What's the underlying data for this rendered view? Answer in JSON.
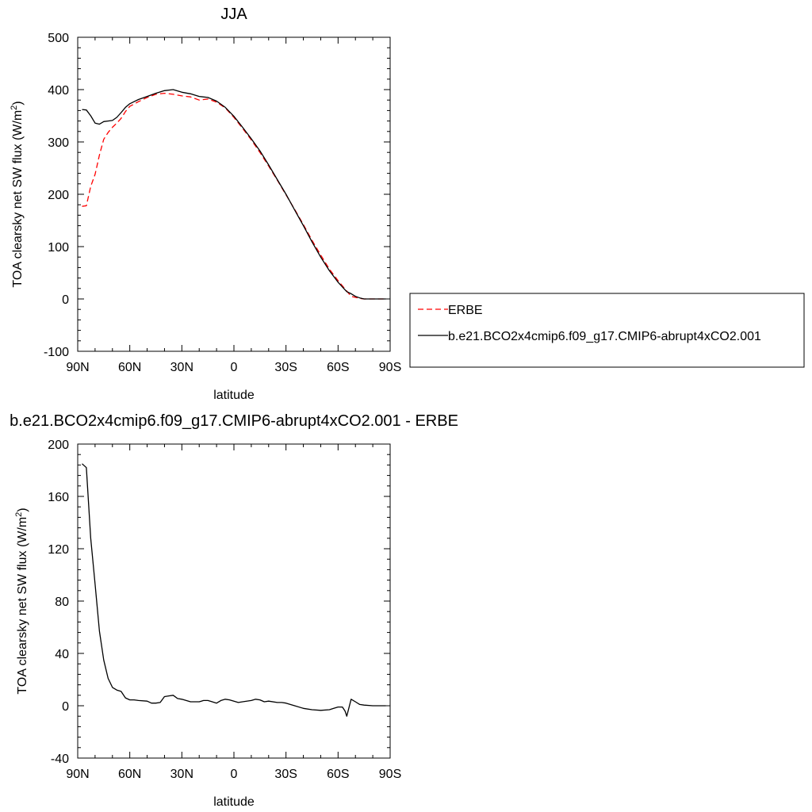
{
  "chart_data": [
    {
      "type": "line",
      "title": "JJA",
      "xlabel": "latitude",
      "ylabel": "TOA clearsky net SW flux (W/m",
      "ylabel_sup": "2",
      "ylabel_close": ")",
      "xlim": [
        90,
        -90
      ],
      "ylim": [
        -100,
        500
      ],
      "xticks": [
        90,
        60,
        30,
        0,
        -30,
        -60,
        -90
      ],
      "xtick_labels": [
        "90N",
        "60N",
        "30N",
        "0",
        "30S",
        "60S",
        "90S"
      ],
      "yticks": [
        -100,
        0,
        100,
        200,
        300,
        400,
        500
      ],
      "ytick_labels": [
        "-100",
        "0",
        "100",
        "200",
        "300",
        "400",
        "500"
      ],
      "grid": false,
      "legend_position": "right",
      "series": [
        {
          "name": "ERBE",
          "color": "#ff0000",
          "dash": "dashed",
          "x": [
            87.5,
            85,
            82.5,
            80,
            77.5,
            75,
            72.5,
            70,
            67.5,
            65,
            62.5,
            60,
            55,
            50,
            45,
            40,
            35,
            30,
            25,
            20,
            15,
            10,
            5,
            0,
            -5,
            -10,
            -15,
            -20,
            -25,
            -30,
            -35,
            -40,
            -45,
            -50,
            -55,
            -60,
            -65,
            -67.5,
            -70,
            -72.5,
            -75,
            -80,
            -85,
            -87.5
          ],
          "y": [
            177,
            178,
            215,
            238,
            275,
            305,
            318,
            328,
            336,
            345,
            358,
            368,
            377,
            385,
            391,
            393,
            391,
            388,
            386,
            380,
            382,
            376,
            365,
            347,
            326,
            304,
            280,
            254,
            227,
            199,
            171,
            142,
            112,
            84,
            57,
            35,
            15,
            5,
            3,
            1,
            0,
            0,
            0,
            0
          ]
        },
        {
          "name": "b.e21.BCO2x4cmip6.f09_g17.CMIP6-abrupt4xCO2.001",
          "color": "#000000",
          "dash": "solid",
          "x": [
            87.5,
            85,
            82.5,
            80,
            77.5,
            75,
            72.5,
            70,
            67.5,
            65,
            62.5,
            60,
            55,
            50,
            45,
            40,
            35,
            30,
            25,
            20,
            15,
            10,
            5,
            0,
            -5,
            -10,
            -15,
            -20,
            -25,
            -30,
            -35,
            -40,
            -45,
            -50,
            -55,
            -60,
            -65,
            -67.5,
            -70,
            -72.5,
            -75,
            -80,
            -85,
            -87.5
          ],
          "y": [
            362,
            361,
            350,
            336,
            334,
            339,
            340,
            341,
            347,
            356,
            366,
            373,
            381,
            387,
            393,
            398,
            400,
            395,
            392,
            387,
            385,
            378,
            366,
            349,
            328,
            306,
            283,
            256,
            228,
            200,
            170,
            140,
            109,
            80,
            54,
            32,
            14,
            10,
            5,
            2,
            0,
            0,
            0,
            0
          ]
        }
      ]
    },
    {
      "type": "line",
      "title": "b.e21.BCO2x4cmip6.f09_g17.CMIP6-abrupt4xCO2.001 - ERBE",
      "xlabel": "latitude",
      "ylabel": "TOA clearsky net SW flux (W/m",
      "ylabel_sup": "2",
      "ylabel_close": ")",
      "xlim": [
        90,
        -90
      ],
      "ylim": [
        -40,
        200
      ],
      "xticks": [
        90,
        60,
        30,
        0,
        -30,
        -60,
        -90
      ],
      "xtick_labels": [
        "90N",
        "60N",
        "30N",
        "0",
        "30S",
        "60S",
        "90S"
      ],
      "yticks": [
        -40,
        0,
        40,
        80,
        120,
        160,
        200
      ],
      "ytick_labels": [
        "-40",
        "0",
        "40",
        "80",
        "120",
        "160",
        "200"
      ],
      "grid": false,
      "series": [
        {
          "color": "#000000",
          "dash": "solid",
          "x": [
            87.5,
            85,
            82.5,
            80,
            77.5,
            75,
            72.5,
            70,
            67.5,
            65,
            62.5,
            60,
            57.5,
            55,
            50,
            47.5,
            45,
            42.5,
            40,
            37.5,
            35,
            32.5,
            30,
            27.5,
            25,
            20,
            17.5,
            15,
            12.5,
            10,
            7.5,
            5,
            2.5,
            0,
            -2.5,
            -5,
            -10,
            -12.5,
            -15,
            -17.5,
            -20,
            -25,
            -27.5,
            -30,
            -32.5,
            -35,
            -40,
            -45,
            -50,
            -55,
            -57.5,
            -60,
            -62.5,
            -64,
            -65,
            -67.5,
            -70,
            -72.5,
            -75,
            -80,
            -85,
            -87.5
          ],
          "y": [
            185,
            182,
            128,
            93,
            57,
            35,
            21,
            14,
            12,
            11,
            6,
            4.5,
            4.5,
            4,
            3.5,
            2,
            2,
            2.5,
            7,
            7.5,
            8,
            5.5,
            5,
            4,
            3,
            3,
            4,
            4,
            3,
            2,
            4,
            5,
            4.5,
            3.5,
            2.5,
            3,
            4,
            5,
            4.5,
            3,
            3.5,
            2.5,
            2.5,
            2,
            1,
            0,
            -2,
            -3,
            -3.5,
            -3,
            -2,
            -1,
            -1,
            -4,
            -8,
            5,
            3,
            1,
            0.5,
            0,
            0,
            0
          ]
        }
      ]
    }
  ]
}
